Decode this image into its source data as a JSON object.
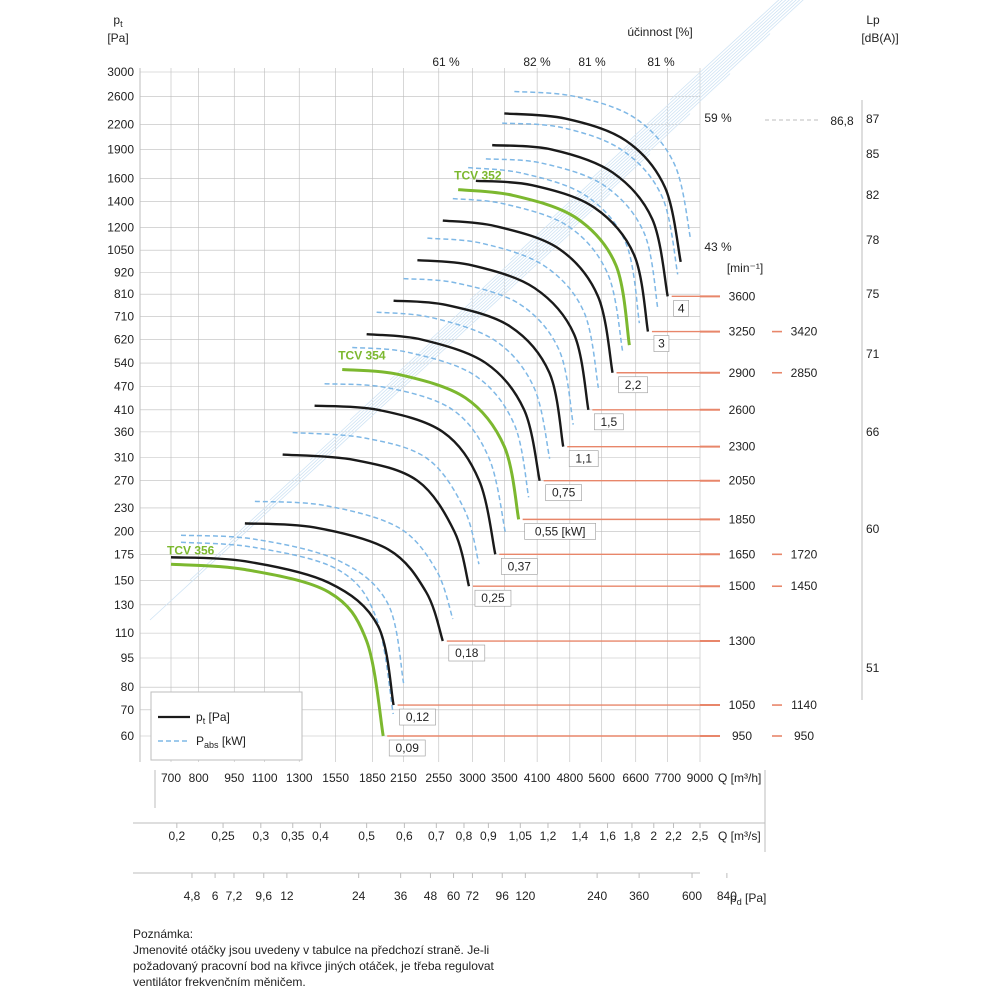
{
  "chart_data": {
    "type": "line",
    "colors": {
      "pt": "#1a1a1a",
      "pabs": "#7fb8e6",
      "highlight": "#7cb82f",
      "speed": "#e8866a",
      "grid": "#bdbdbd",
      "guide": "#cfe3f4"
    },
    "y_axis": {
      "title": "p",
      "subscript": "t",
      "unit": "[Pa]",
      "scale": "log",
      "ticks": [
        "3000",
        "2600",
        "2200",
        "1900",
        "1600",
        "1400",
        "1200",
        "1050",
        "920",
        "810",
        "710",
        "620",
        "540",
        "470",
        "410",
        "360",
        "310",
        "270",
        "230",
        "200",
        "175",
        "150",
        "130",
        "110",
        "95",
        "80",
        "70",
        "60"
      ]
    },
    "lp_axis": {
      "title": "Lp",
      "unit": "[dB(A)]",
      "ticks": [
        "87",
        "85",
        "82",
        "78",
        "75",
        "71",
        "66",
        "60",
        "51"
      ]
    },
    "x_axes": [
      {
        "unit": "Q [m³/h]",
        "ticks": [
          "700",
          "800",
          "950",
          "1100",
          "1300",
          "1550",
          "1850",
          "2150",
          "2550",
          "3000",
          "3500",
          "4100",
          "4800",
          "5600",
          "6600",
          "7700",
          "9000"
        ]
      },
      {
        "unit": "Q [m³/s]",
        "ticks": [
          "0,2",
          "0,25",
          "0,3",
          "0,35",
          "0,4",
          "0,5",
          "0,6",
          "0,7",
          "0,8",
          "0,9",
          "1,05",
          "1,2",
          "1,4",
          "1,6",
          "1,8",
          "2",
          "2,2",
          "2,5"
        ]
      },
      {
        "unit": "p",
        "unit_sub": "d",
        "unit_tail": " [Pa]",
        "ticks": [
          "4,8",
          "6",
          "7,2",
          "9,6",
          "12",
          "24",
          "36",
          "48",
          "60",
          "72",
          "96",
          "120",
          "240",
          "360",
          "600",
          "840"
        ]
      }
    ],
    "efficiency": {
      "title": "účinnost [%]",
      "top_labels": [
        "61 %",
        "82 %",
        "81 %",
        "81 %"
      ],
      "side_labels": [
        "59 %",
        "43 %"
      ],
      "lp_marker": "86,8"
    },
    "speed_unit": "[min⁻¹]",
    "curves": [
      {
        "power": "0,09",
        "speed": "950",
        "speed_right": "950",
        "x": [
          700,
          1000,
          1500,
          1800,
          1950
        ],
        "y": [
          165,
          160,
          140,
          105,
          60
        ],
        "highlight": true,
        "label": "TCV 356"
      },
      {
        "power": "0,12",
        "speed": "1050",
        "speed_right": "1140",
        "x": [
          700,
          1000,
          1500,
          1900,
          2050
        ],
        "y": [
          172,
          168,
          148,
          115,
          72
        ]
      },
      {
        "power": "0,18",
        "speed": "1300",
        "speed_right": "",
        "x": [
          1000,
          1400,
          2000,
          2400,
          2600
        ],
        "y": [
          210,
          205,
          180,
          140,
          105
        ]
      },
      {
        "power": "0,25",
        "speed": "1500",
        "speed_right": "1450",
        "x": [
          1200,
          1700,
          2300,
          2750,
          2950
        ],
        "y": [
          315,
          305,
          270,
          200,
          145
        ]
      },
      {
        "power": "0,37",
        "speed": "1650",
        "speed_right": "1720",
        "x": [
          1400,
          1900,
          2600,
          3100,
          3350
        ],
        "y": [
          420,
          410,
          360,
          270,
          175
        ]
      },
      {
        "power": "0,55 [kW]",
        "speed": "1850",
        "speed_right": "",
        "x": [
          1600,
          2100,
          2900,
          3500,
          3750
        ],
        "y": [
          520,
          505,
          440,
          330,
          215
        ],
        "highlight": true,
        "label": "TCV 354"
      },
      {
        "power": "0,75",
        "speed": "2050",
        "speed_right": "",
        "x": [
          1800,
          2350,
          3200,
          3850,
          4150
        ],
        "y": [
          640,
          620,
          540,
          410,
          270
        ]
      },
      {
        "power": "1,1",
        "speed": "2300",
        "speed_right": "",
        "x": [
          2050,
          2650,
          3600,
          4350,
          4650
        ],
        "y": [
          780,
          760,
          670,
          510,
          330
        ]
      },
      {
        "power": "1,5",
        "speed": "2600",
        "speed_right": "",
        "x": [
          2300,
          3000,
          4050,
          4900,
          5250
        ],
        "y": [
          990,
          960,
          840,
          640,
          410
        ]
      },
      {
        "power": "2,2",
        "speed": "2900",
        "speed_right": "2850",
        "x": [
          2600,
          3350,
          4550,
          5500,
          5900
        ],
        "y": [
          1250,
          1210,
          1060,
          800,
          510
        ]
      },
      {
        "power": "",
        "speed": "",
        "speed_right": "",
        "x": [
          2800,
          3650,
          4950,
          6000,
          6400
        ],
        "y": [
          1500,
          1450,
          1270,
          960,
          600
        ],
        "highlight": true,
        "label": "TCV 352"
      },
      {
        "power": "3",
        "speed": "3250",
        "speed_right": "3420",
        "x": [
          3050,
          4000,
          5400,
          6550,
          7000
        ],
        "y": [
          1580,
          1540,
          1350,
          1020,
          650
        ]
      },
      {
        "power": "4",
        "speed": "3600",
        "speed_right": "",
        "x": [
          3300,
          4400,
          5900,
          7150,
          7700
        ],
        "y": [
          1950,
          1900,
          1660,
          1260,
          800
        ]
      },
      {
        "power": "",
        "speed": "",
        "speed_right": "",
        "x": [
          3500,
          4700,
          6300,
          7600,
          8200
        ],
        "y": [
          2350,
          2280,
          2000,
          1520,
          980
        ]
      }
    ],
    "legend": [
      {
        "name": "p",
        "sub": "t",
        "tail": " [Pa]",
        "style": "solid"
      },
      {
        "name": "P",
        "sub": "abs",
        "tail": " [kW]",
        "style": "dashed"
      }
    ]
  },
  "note": {
    "title": "Poznámka:",
    "lines": [
      "Jmenovité otáčky jsou uvedeny v tabulce na předchozí straně. Je-li",
      "požadovaný pracovní bod na křivce jiných otáček, je třeba regulovat",
      "ventilátor frekvenčním měničem."
    ]
  }
}
